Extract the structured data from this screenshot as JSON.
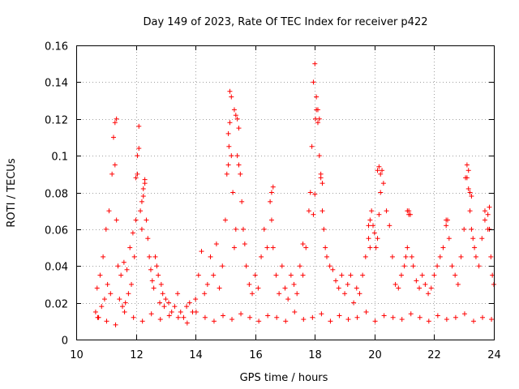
{
  "chart_data": {
    "type": "scatter",
    "title": "Day 149 of 2023, Rate Of TEC Index for receiver p422",
    "xlabel": "GPS time / hours",
    "ylabel": "ROTI / TECUs",
    "xlim": [
      10,
      24
    ],
    "ylim": [
      0,
      0.16
    ],
    "xticks": [
      "10",
      "12",
      "14",
      "16",
      "18",
      "20",
      "22",
      "24"
    ],
    "yticks": [
      "0",
      "0.02",
      "0.04",
      "0.06",
      "0.08",
      "0.1",
      "0.12",
      "0.14",
      "0.16"
    ],
    "grid": true,
    "marker": "+",
    "color": "#ff0000",
    "series": [
      {
        "x": [
          10.65,
          10.7,
          10.75,
          10.8,
          10.85,
          10.9,
          10.95,
          11.0,
          11.05,
          11.1,
          11.15,
          11.2,
          11.25,
          11.3,
          11.35,
          11.4,
          11.45,
          11.5,
          11.55,
          11.6,
          11.65,
          11.7,
          11.75,
          11.8,
          11.85,
          11.9,
          11.95,
          12.0,
          12.05,
          12.1,
          12.15,
          12.2,
          12.25,
          12.3,
          12.35,
          12.4,
          12.45,
          12.5,
          12.55,
          12.6,
          12.65,
          12.7,
          12.75,
          12.8,
          12.85,
          12.9,
          12.95,
          13.0,
          13.1,
          13.2,
          13.3,
          13.4,
          13.5,
          13.6,
          13.7,
          13.8,
          13.9,
          14.0,
          14.1,
          14.2,
          14.3,
          14.4,
          14.5,
          14.6,
          14.7,
          14.8,
          14.9,
          15.0,
          15.05,
          15.1,
          15.15,
          15.2,
          15.25,
          15.3,
          15.35,
          15.4,
          15.45,
          15.5,
          15.55,
          15.6,
          15.65,
          15.7,
          15.8,
          15.9,
          16.0,
          16.1,
          16.2,
          16.3,
          16.4,
          16.5,
          16.55,
          16.6,
          16.7,
          16.8,
          16.9,
          17.0,
          17.1,
          17.2,
          17.3,
          17.4,
          17.5,
          17.6,
          17.7,
          17.8,
          17.85,
          17.9,
          17.95,
          18.0,
          18.05,
          18.1,
          18.15,
          18.2,
          18.25,
          18.3,
          18.35,
          18.4,
          18.5,
          18.6,
          18.7,
          18.8,
          18.9,
          19.0,
          19.1,
          19.2,
          19.3,
          19.4,
          19.5,
          19.6,
          19.7,
          19.8,
          19.85,
          19.9,
          19.95,
          20.0,
          20.05,
          20.1,
          20.15,
          20.2,
          20.25,
          20.3,
          20.4,
          20.5,
          20.6,
          20.7,
          20.8,
          20.9,
          21.0,
          21.05,
          21.1,
          21.15,
          21.2,
          21.25,
          21.3,
          21.4,
          21.5,
          21.6,
          21.7,
          21.8,
          21.9,
          22.0,
          22.1,
          22.2,
          22.3,
          22.4,
          22.5,
          22.6,
          22.7,
          22.8,
          22.9,
          23.0,
          23.05,
          23.1,
          23.15,
          23.2,
          23.25,
          23.3,
          23.35,
          23.4,
          23.5,
          23.6,
          23.7,
          23.8,
          23.85,
          23.9,
          23.95,
          24.0,
          10.72,
          11.02,
          11.32,
          11.62,
          11.92,
          12.22,
          12.52,
          12.82,
          13.12,
          13.42,
          13.72,
          14.02,
          14.32,
          14.62,
          14.92,
          15.22,
          15.52,
          15.82,
          16.12,
          16.42,
          16.72,
          17.02,
          17.32,
          17.62,
          17.92,
          18.22,
          18.52,
          18.82,
          19.12,
          19.42,
          19.72,
          20.02,
          20.32,
          20.62,
          20.92,
          21.22,
          21.52,
          21.82,
          22.12,
          22.42,
          22.72,
          23.02,
          23.32,
          23.62,
          23.92,
          11.3,
          11.35,
          12.0,
          12.05,
          12.1,
          12.2,
          12.25,
          12.3,
          15.1,
          15.12,
          15.15,
          15.2,
          15.3,
          15.35,
          15.4,
          15.45,
          17.95,
          18.0,
          18.02,
          18.05,
          18.1,
          18.15,
          18.2,
          18.25,
          20.1,
          20.15,
          20.2,
          23.1,
          23.15,
          23.2,
          23.25,
          16.55,
          16.6,
          21.1,
          21.15,
          22.4,
          22.45,
          23.7,
          23.8,
          23.85,
          19.8,
          19.85,
          17.6
        ],
        "y": [
          0.015,
          0.028,
          0.012,
          0.035,
          0.018,
          0.045,
          0.022,
          0.06,
          0.03,
          0.07,
          0.025,
          0.09,
          0.11,
          0.118,
          0.065,
          0.04,
          0.022,
          0.035,
          0.018,
          0.042,
          0.02,
          0.038,
          0.025,
          0.05,
          0.03,
          0.058,
          0.045,
          0.065,
          0.09,
          0.104,
          0.07,
          0.06,
          0.078,
          0.085,
          0.065,
          0.055,
          0.045,
          0.038,
          0.032,
          0.028,
          0.045,
          0.04,
          0.035,
          0.02,
          0.03,
          0.025,
          0.018,
          0.022,
          0.02,
          0.015,
          0.018,
          0.025,
          0.015,
          0.012,
          0.018,
          0.02,
          0.015,
          0.022,
          0.035,
          0.048,
          0.025,
          0.03,
          0.045,
          0.035,
          0.052,
          0.028,
          0.04,
          0.065,
          0.09,
          0.112,
          0.135,
          0.1,
          0.08,
          0.05,
          0.06,
          0.12,
          0.115,
          0.09,
          0.075,
          0.06,
          0.052,
          0.04,
          0.03,
          0.025,
          0.035,
          0.028,
          0.045,
          0.06,
          0.05,
          0.075,
          0.08,
          0.05,
          0.035,
          0.025,
          0.04,
          0.028,
          0.022,
          0.035,
          0.03,
          0.025,
          0.04,
          0.035,
          0.05,
          0.07,
          0.08,
          0.105,
          0.14,
          0.15,
          0.125,
          0.118,
          0.1,
          0.088,
          0.07,
          0.06,
          0.05,
          0.045,
          0.04,
          0.038,
          0.032,
          0.028,
          0.035,
          0.025,
          0.03,
          0.035,
          0.02,
          0.028,
          0.025,
          0.035,
          0.045,
          0.055,
          0.065,
          0.07,
          0.062,
          0.058,
          0.05,
          0.055,
          0.068,
          0.09,
          0.092,
          0.085,
          0.07,
          0.062,
          0.045,
          0.03,
          0.028,
          0.035,
          0.04,
          0.045,
          0.05,
          0.07,
          0.068,
          0.045,
          0.04,
          0.032,
          0.028,
          0.035,
          0.03,
          0.025,
          0.028,
          0.035,
          0.04,
          0.045,
          0.05,
          0.065,
          0.055,
          0.04,
          0.035,
          0.03,
          0.045,
          0.06,
          0.088,
          0.095,
          0.082,
          0.07,
          0.06,
          0.055,
          0.05,
          0.045,
          0.04,
          0.055,
          0.065,
          0.068,
          0.06,
          0.045,
          0.035,
          0.03,
          0.012,
          0.01,
          0.008,
          0.015,
          0.012,
          0.01,
          0.014,
          0.011,
          0.013,
          0.012,
          0.009,
          0.015,
          0.012,
          0.01,
          0.013,
          0.011,
          0.014,
          0.012,
          0.01,
          0.013,
          0.012,
          0.01,
          0.015,
          0.011,
          0.012,
          0.014,
          0.01,
          0.013,
          0.011,
          0.012,
          0.015,
          0.01,
          0.013,
          0.012,
          0.011,
          0.014,
          0.012,
          0.01,
          0.013,
          0.011,
          0.012,
          0.014,
          0.01,
          0.012,
          0.011,
          0.095,
          0.12,
          0.088,
          0.1,
          0.116,
          0.075,
          0.082,
          0.087,
          0.095,
          0.105,
          0.118,
          0.132,
          0.125,
          0.122,
          0.1,
          0.095,
          0.068,
          0.079,
          0.12,
          0.132,
          0.125,
          0.12,
          0.09,
          0.085,
          0.092,
          0.094,
          0.08,
          0.088,
          0.092,
          0.08,
          0.078,
          0.065,
          0.083,
          0.07,
          0.068,
          0.062,
          0.065,
          0.07,
          0.06,
          0.072,
          0.062,
          0.05,
          0.052
        ]
      }
    ]
  }
}
